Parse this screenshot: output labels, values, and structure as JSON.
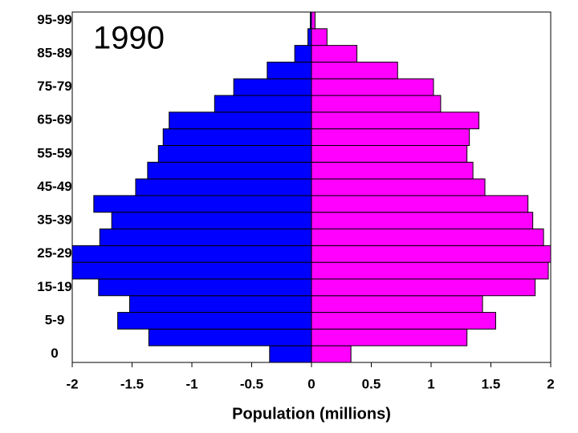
{
  "chart_data": {
    "type": "bar",
    "orientation": "horizontal",
    "annotation": "1990",
    "x_label": "Population (millions)",
    "categories": [
      "0",
      null,
      "5-9",
      null,
      "15-19",
      null,
      "25-29",
      null,
      "35-39",
      null,
      "45-49",
      null,
      "55-59",
      null,
      "65-69",
      null,
      "75-79",
      null,
      "85-89",
      null,
      "95-99"
    ],
    "series": [
      {
        "color": "#0000ff",
        "values": [
          -0.35,
          -1.36,
          -1.62,
          -1.52,
          -1.78,
          -2.0,
          -2.0,
          -1.77,
          -1.67,
          -1.82,
          -1.47,
          -1.37,
          -1.28,
          -1.24,
          -1.19,
          -0.81,
          -0.65,
          -0.37,
          -0.14,
          -0.03,
          -0.01
        ]
      },
      {
        "color": "#ff00ff",
        "values": [
          0.33,
          1.3,
          1.54,
          1.43,
          1.87,
          1.98,
          2.0,
          1.94,
          1.85,
          1.81,
          1.45,
          1.35,
          1.3,
          1.32,
          1.4,
          1.08,
          1.02,
          0.72,
          0.38,
          0.13,
          0.03
        ]
      }
    ],
    "xlim": [
      -2,
      2
    ],
    "xticks": [
      -2,
      -1.5,
      -1,
      -0.5,
      0,
      0.5,
      1,
      1.5,
      2
    ],
    "grid": false
  }
}
